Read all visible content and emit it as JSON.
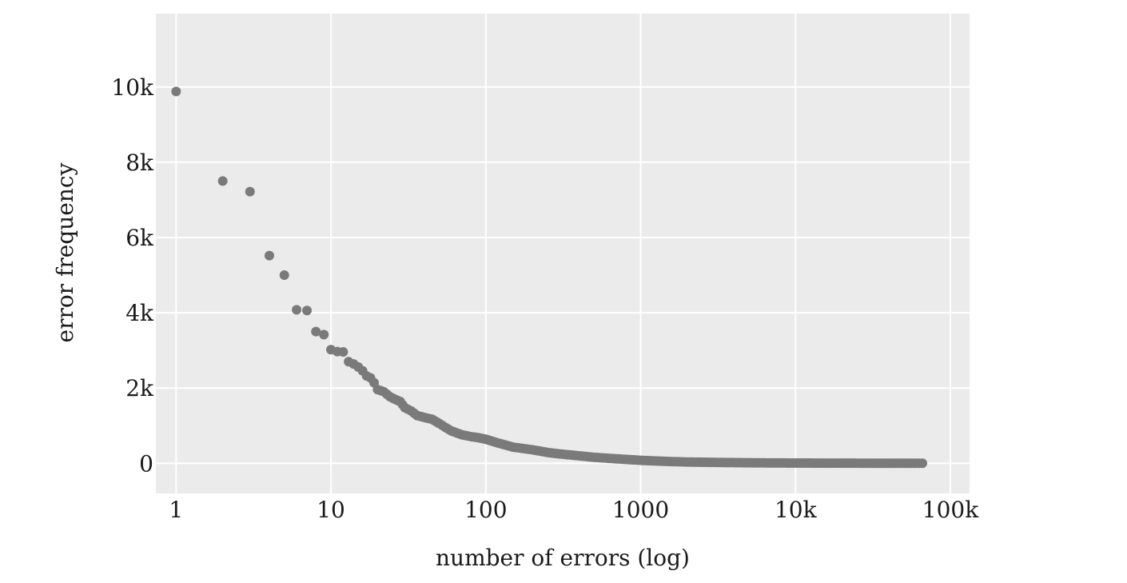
{
  "chart_data": {
    "type": "scatter",
    "title": "",
    "xlabel": "number of errors (log)",
    "ylabel": "error frequency",
    "x_scale": "log",
    "xlim": [
      0.74,
      133000
    ],
    "ylim": [
      -800,
      11950
    ],
    "grid": true,
    "legend": "none",
    "x_ticks": [
      {
        "value": 1,
        "label": "1"
      },
      {
        "value": 10,
        "label": "10"
      },
      {
        "value": 100,
        "label": "100"
      },
      {
        "value": 1000,
        "label": "1000"
      },
      {
        "value": 10000,
        "label": "10k"
      },
      {
        "value": 100000,
        "label": "100k"
      }
    ],
    "y_ticks": [
      {
        "value": 0,
        "label": "0"
      },
      {
        "value": 2000,
        "label": "2k"
      },
      {
        "value": 4000,
        "label": "4k"
      },
      {
        "value": 6000,
        "label": "6k"
      },
      {
        "value": 8000,
        "label": "8k"
      },
      {
        "value": 10000,
        "label": "10k"
      }
    ],
    "series": [
      {
        "color": "#7a7a7a",
        "x": [
          1,
          2,
          3,
          4,
          5,
          6,
          7,
          8,
          9,
          10,
          11,
          12,
          13,
          14,
          15,
          16,
          17,
          18,
          19,
          20,
          22,
          24,
          26,
          28,
          30,
          33,
          36,
          40,
          45,
          50,
          55,
          60,
          70,
          80,
          90,
          100,
          120,
          150,
          200,
          250,
          300,
          400,
          500,
          700,
          1000,
          1500,
          2000,
          3000,
          5000,
          7000,
          10000,
          15000,
          20000,
          30000,
          40000,
          50000,
          60000,
          66000
        ],
        "y": [
          9880,
          7500,
          7220,
          5520,
          5000,
          4080,
          4060,
          3500,
          3420,
          3020,
          2970,
          2960,
          2700,
          2640,
          2560,
          2460,
          2320,
          2270,
          2140,
          1960,
          1900,
          1770,
          1700,
          1640,
          1480,
          1390,
          1270,
          1220,
          1170,
          1060,
          950,
          860,
          760,
          710,
          680,
          640,
          540,
          430,
          360,
          290,
          250,
          200,
          160,
          120,
          80,
          50,
          35,
          25,
          15,
          10,
          8,
          5,
          4,
          3,
          2,
          2,
          1,
          1
        ]
      }
    ]
  }
}
